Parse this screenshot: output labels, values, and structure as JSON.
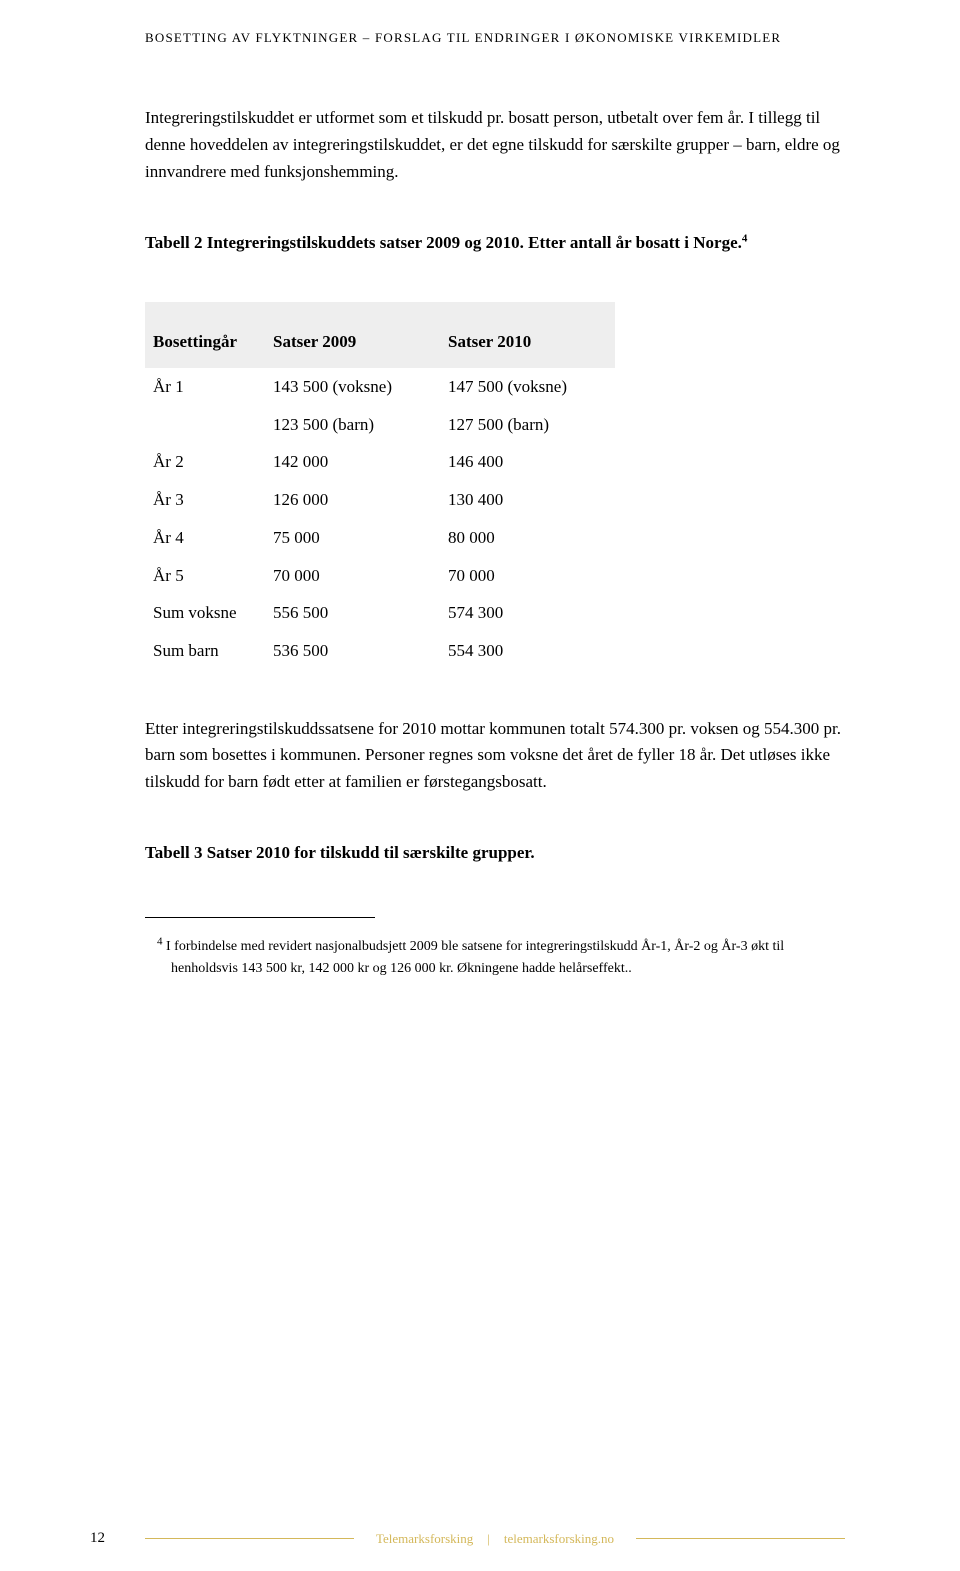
{
  "header": {
    "running_title": "BOSETTING AV FLYKTNINGER – FORSLAG TIL ENDRINGER I ØKONOMISKE VIRKEMIDLER"
  },
  "intro_para": "Integreringstilskuddet er utformet som et tilskudd pr. bosatt person, utbetalt over fem år. I tillegg til denne hoveddelen av integreringstilskuddet, er det egne tilskudd for særskilte grupper – barn, eldre og innvandrere med funksjonshemming.",
  "table1_caption_pre": "Tabell 2 Integreringstilskuddets satser 2009 og 2010. Etter antall år bosatt i Norge.",
  "table1_caption_sup": "4",
  "table1": {
    "headers": [
      "Bosettingår",
      "Satser 2009",
      "Satser 2010"
    ],
    "rows": [
      [
        "År 1",
        "143 500 (voksne)",
        "147 500 (voksne)"
      ],
      [
        "",
        "123 500 (barn)",
        "127 500 (barn)"
      ],
      [
        "År 2",
        "142 000",
        "146 400"
      ],
      [
        "År 3",
        "126 000",
        "130 400"
      ],
      [
        "År 4",
        "75 000",
        "80 000"
      ],
      [
        "År 5",
        "70 000",
        "70 000"
      ],
      [
        "Sum voksne",
        "556 500",
        "574 300"
      ],
      [
        "Sum barn",
        "536 500",
        "554 300"
      ]
    ]
  },
  "body_para2": "Etter integreringstilskuddssatsene for 2010 mottar kommunen totalt 574.300 pr. voksen og 554.300 pr. barn som bosettes i kommunen. Personer regnes som voksne det året de fyller 18 år. Det utløses ikke tilskudd for barn født etter at familien er førstegangsbosatt.",
  "table2_caption": "Tabell 3 Satser 2010 for tilskudd til særskilte grupper.",
  "footnote": {
    "sup": "4",
    "text": " I forbindelse med revidert nasjonalbudsjett 2009 ble satsene for integreringstilskudd År-1, År-2 og År-3 økt til henholdsvis 143 500 kr, 142 000 kr og 126 000 kr. Økningene hadde helårseffekt.."
  },
  "footer": {
    "page": "12",
    "org": "Telemarksforsking",
    "site": "telemarksforsking.no"
  }
}
